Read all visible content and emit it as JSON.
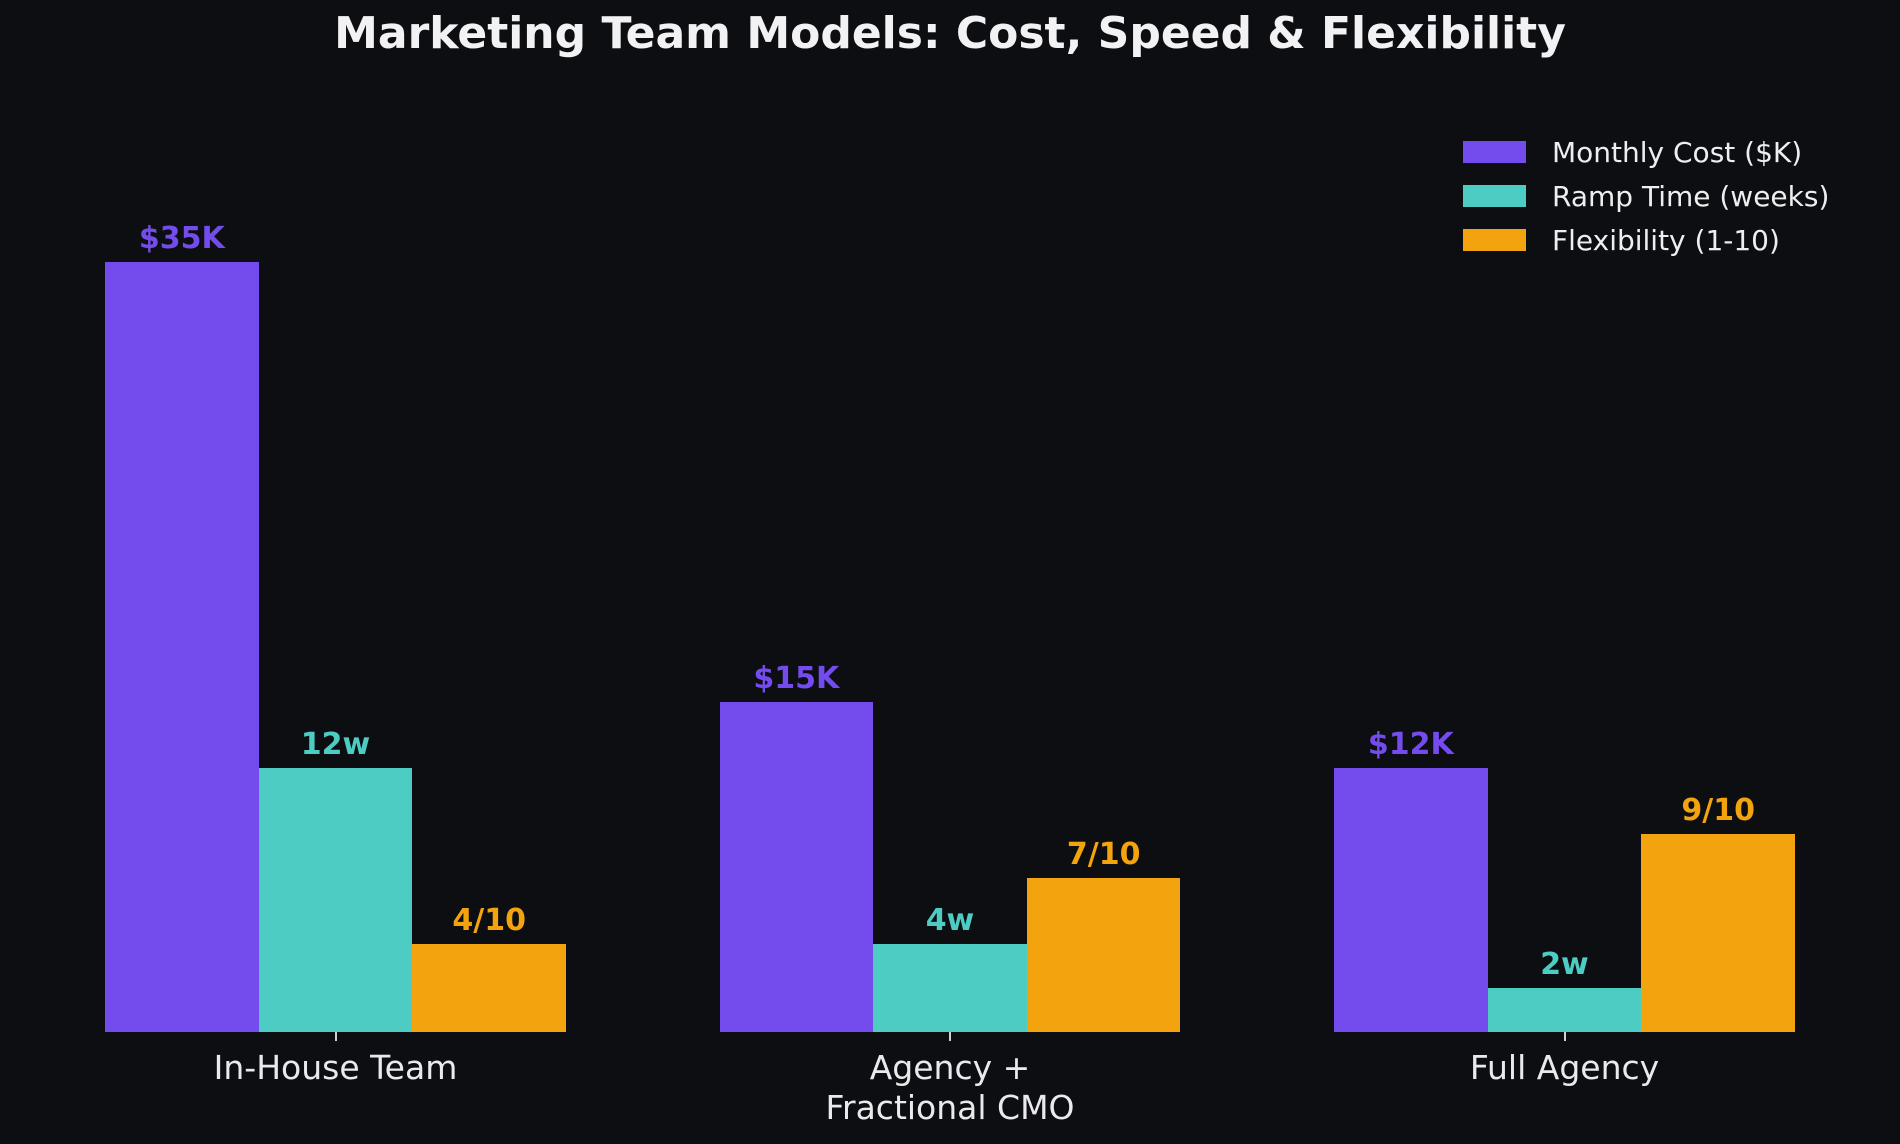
{
  "title": "Marketing Team Models: Cost, Speed & Flexibility",
  "colors": {
    "background": "#0d0e12",
    "title_text": "#f2f2f5",
    "axis_text": "#eaeaed",
    "legend_text": "#edeef0",
    "tick": "#d0d0d5"
  },
  "chart_data": {
    "type": "bar",
    "title": "Marketing Team Models: Cost, Speed & Flexibility",
    "categories": [
      "In-House Team",
      "Agency +\nFractional CMO",
      "Full Agency"
    ],
    "series": [
      {
        "name": "Monthly Cost ($K)",
        "color": "#744cee",
        "values": [
          35,
          15,
          12
        ],
        "display_labels": [
          "$35K",
          "$15K",
          "$12K"
        ]
      },
      {
        "name": "Ramp Time (weeks)",
        "color": "#4dccc3",
        "values": [
          12,
          4,
          2
        ],
        "display_labels": [
          "12w",
          "4w",
          "2w"
        ]
      },
      {
        "name": "Flexibility (1-10)",
        "color": "#f3a30e",
        "values": [
          4,
          7,
          9
        ],
        "display_labels": [
          "4/10",
          "7/10",
          "9/10"
        ]
      }
    ],
    "ylim": [
      0,
      35
    ],
    "grid": false,
    "legend_position": "upper right",
    "x_axis_line_visible": false,
    "y_axis_visible": false
  }
}
